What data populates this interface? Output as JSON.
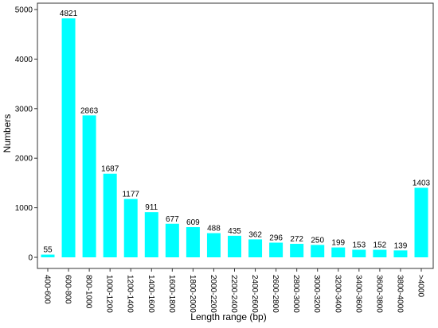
{
  "chart_data": {
    "type": "bar",
    "categories": [
      "400-600",
      "600-800",
      "800-1000",
      "1000-1200",
      "1200-1400",
      "1400-1600",
      "1600-1800",
      "1800-2000",
      "2000-2200",
      "2200-2400",
      "2400-2600",
      "2600-2800",
      "2800-3000",
      "3000-3200",
      "3200-3400",
      "3400-3600",
      "3600-3800",
      "3800-4000",
      ">4000"
    ],
    "values": [
      55,
      4821,
      2863,
      1687,
      1177,
      911,
      677,
      609,
      488,
      435,
      362,
      296,
      272,
      250,
      199,
      153,
      152,
      139,
      1403
    ],
    "data_labels": [
      "55",
      "4821",
      "2863",
      "1687",
      "1177",
      "911",
      "677",
      "609",
      "488",
      "435",
      "362",
      "296",
      "272",
      "250",
      "199",
      "153",
      "152",
      "139",
      "1403"
    ],
    "title": "",
    "xlabel": "Length range (bp)",
    "ylabel": "Numbers",
    "ylim": [
      0,
      5000
    ],
    "yticks": [
      0,
      1000,
      2000,
      3000,
      4000,
      5000
    ],
    "ytick_labels": [
      "0",
      "1000",
      "2000",
      "3000",
      "4000",
      "5000"
    ],
    "grid": false,
    "legend": "none",
    "bar_color": "#00ffff",
    "axis_color": "#333333"
  }
}
